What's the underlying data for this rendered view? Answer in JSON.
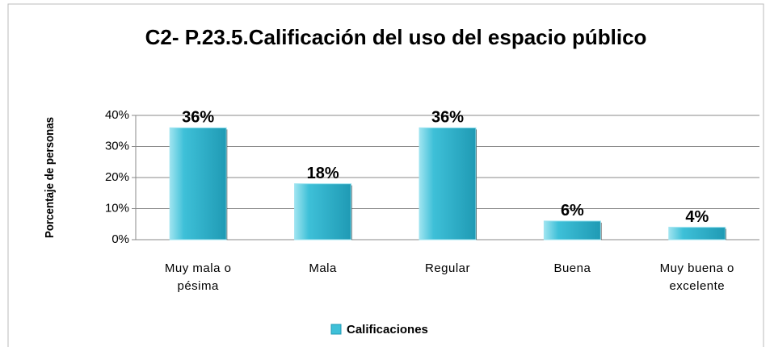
{
  "chart_data": {
    "type": "bar",
    "title": "C2- P.23.5.Calificación del uso del espacio público",
    "y_label": "Porcentaje de personas",
    "categories": [
      "Muy mala o pésima",
      "Mala",
      "Regular",
      "Buena",
      "Muy buena o excelente"
    ],
    "series": [
      {
        "name": "Calificaciones",
        "color": "#3ec0d8",
        "values": [
          36,
          18,
          36,
          6,
          4
        ],
        "value_labels": [
          "36%",
          "18%",
          "36%",
          "6%",
          "4%"
        ]
      }
    ],
    "ylim": [
      0,
      40
    ],
    "yticks": [
      {
        "value": 0,
        "label": "0%"
      },
      {
        "value": 10,
        "label": "10%"
      },
      {
        "value": 20,
        "label": "20%"
      },
      {
        "value": 30,
        "label": "30%"
      },
      {
        "value": 40,
        "label": "40%"
      }
    ],
    "grid": true,
    "legend": "bottom"
  }
}
